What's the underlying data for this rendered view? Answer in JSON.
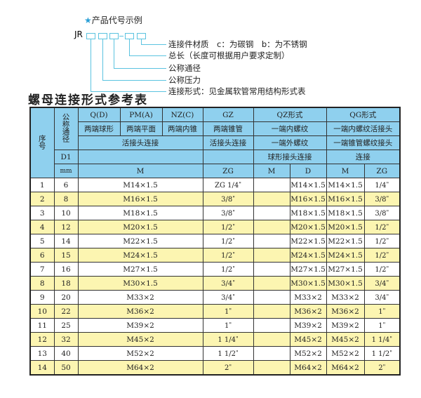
{
  "code_example": {
    "title": "产品代号示例",
    "star_icon": "star-icon",
    "prefix": "JR",
    "labels": [
      "连接件材质　c：为碳钢　b：为不锈钢",
      "总长（长度可根据用户要求定制）",
      "公称通径",
      "公称压力",
      "连接形式：见金属软管常用结构形式表"
    ],
    "line_color": "#5bc3e0"
  },
  "table_title": "螺母连接形式参考表",
  "colors": {
    "header": "#8fd0ee",
    "row_alt": "#fcf5b1"
  },
  "header": {
    "seq": "序号",
    "dn": "公称通径",
    "d1": "D1",
    "mm": "mm",
    "q": "Q(D)",
    "pm": "PM(A)",
    "nz": "NZ(C)",
    "gz": "GZ",
    "qz": "QZ形式",
    "qg": "QG形式",
    "q2": "两端球形",
    "pm2": "两端平面",
    "nz2": "两端内锥",
    "gz2": "两端锥管",
    "qz2": "一端内螺纹",
    "qg2": "一端内螺纹活接头",
    "qpmnz3": "活接头连接",
    "gz3": "活接头连接",
    "qz3": "一端外螺纹",
    "qg3": "一端锥管螺纹接头",
    "qz4": "球形接头连接",
    "qg4": "连接",
    "m": "M",
    "zg": "ZG",
    "qzm": "M",
    "qzd": "D",
    "qgm": "M",
    "qgzg": "ZG"
  },
  "rows": [
    {
      "no": "1",
      "dn": "6",
      "m": "M14×1.5",
      "gz": "ZG 1/4",
      "qzm": "",
      "qzd": "M14×1.5",
      "qgm": "M14×1.5",
      "qgzg": "1/4"
    },
    {
      "no": "2",
      "dn": "8",
      "m": "M16×1.5",
      "gz": "3/8",
      "qzm": "",
      "qzd": "M16×1.5",
      "qgm": "M16×1.5",
      "qgzg": "3/8"
    },
    {
      "no": "3",
      "dn": "10",
      "m": "M18×1.5",
      "gz": "3/8",
      "qzm": "",
      "qzd": "M18×1.5",
      "qgm": "M18×1.5",
      "qgzg": "3/8"
    },
    {
      "no": "4",
      "dn": "12",
      "m": "M20×1.5",
      "gz": "1/2",
      "qzm": "",
      "qzd": "M20×1.5",
      "qgm": "M20×1.5",
      "qgzg": "1/2"
    },
    {
      "no": "5",
      "dn": "14",
      "m": "M22×1.5",
      "gz": "1/2",
      "qzm": "",
      "qzd": "M22×1.5",
      "qgm": "M22×1.5",
      "qgzg": "1/2"
    },
    {
      "no": "6",
      "dn": "15",
      "m": "M24×1.5",
      "gz": "1/2",
      "qzm": "",
      "qzd": "M24×1.5",
      "qgm": "M24×1.5",
      "qgzg": "1/2"
    },
    {
      "no": "7",
      "dn": "16",
      "m": "M27×1.5",
      "gz": "1/2",
      "qzm": "",
      "qzd": "M27×1.5",
      "qgm": "M27×1.5",
      "qgzg": "1/2"
    },
    {
      "no": "8",
      "dn": "18",
      "m": "M30×1.5",
      "gz": "3/4",
      "qzm": "",
      "qzd": "M30×1.5",
      "qgm": "M30×1.5",
      "qgzg": "3/4"
    },
    {
      "no": "9",
      "dn": "20",
      "m": "M33×2",
      "gz": "3/4",
      "qzm": "",
      "qzd": "M33×2",
      "qgm": "M33×2",
      "qgzg": "3/4"
    },
    {
      "no": "10",
      "dn": "22",
      "m": "M36×2",
      "gz": "1",
      "qzm": "",
      "qzd": "M36×2",
      "qgm": "M36×2",
      "qgzg": "1"
    },
    {
      "no": "11",
      "dn": "25",
      "m": "M39×2",
      "gz": "1",
      "qzm": "",
      "qzd": "M39×2",
      "qgm": "M39×2",
      "qgzg": "1"
    },
    {
      "no": "12",
      "dn": "32",
      "m": "M45×2",
      "gz": "1 1/4",
      "qzm": "",
      "qzd": "M45×2",
      "qgm": "M45×2",
      "qgzg": "1 1/4"
    },
    {
      "no": "13",
      "dn": "40",
      "m": "M52×2",
      "gz": "1 1/2",
      "qzm": "",
      "qzd": "M52×2",
      "qgm": "M52×2",
      "qgzg": "1 1/2"
    },
    {
      "no": "14",
      "dn": "50",
      "m": "M64×2",
      "gz": "2",
      "qzm": "",
      "qzd": "M64×2",
      "qgm": "M64×2",
      "qgzg": "2"
    }
  ]
}
